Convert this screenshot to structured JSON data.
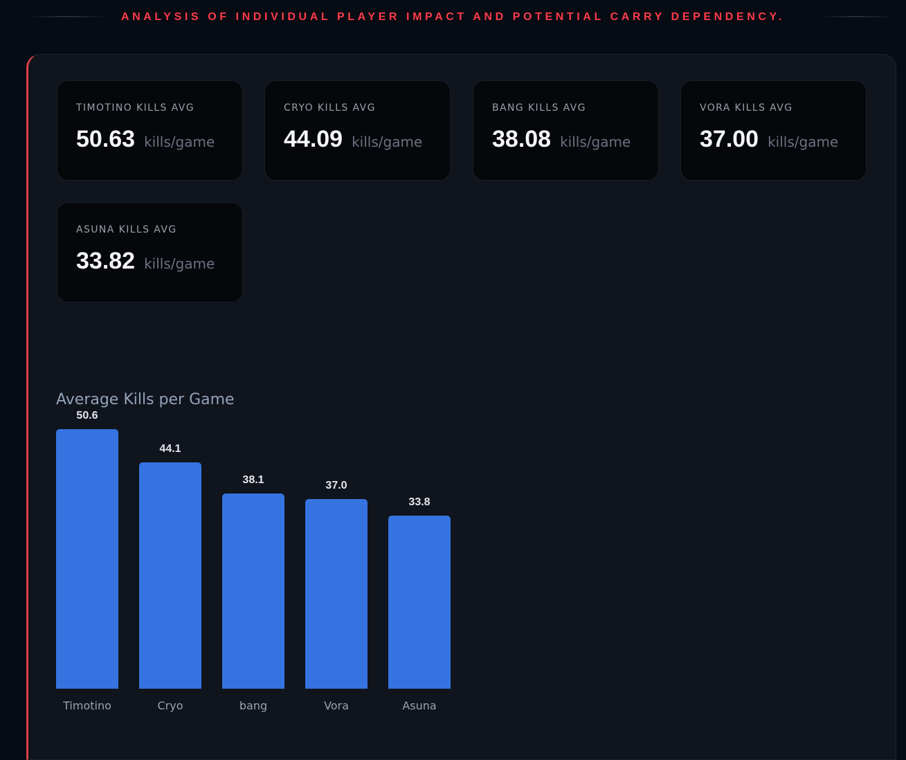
{
  "header": {
    "title": "ANALYSIS OF INDIVIDUAL PLAYER IMPACT AND POTENTIAL CARRY DEPENDENCY."
  },
  "cards": [
    {
      "label": "TIMOTINO KILLS AVG",
      "value": "50.63",
      "unit": "kills/game"
    },
    {
      "label": "CRYO KILLS AVG",
      "value": "44.09",
      "unit": "kills/game"
    },
    {
      "label": "BANG KILLS AVG",
      "value": "38.08",
      "unit": "kills/game"
    },
    {
      "label": "VORA KILLS AVG",
      "value": "37.00",
      "unit": "kills/game"
    },
    {
      "label": "ASUNA KILLS AVG",
      "value": "33.82",
      "unit": "kills/game"
    }
  ],
  "chart_data": {
    "type": "bar",
    "title": "Average Kills per Game",
    "categories": [
      "Timotino",
      "Cryo",
      "bang",
      "Vora",
      "Asuna"
    ],
    "values": [
      50.63,
      44.09,
      38.08,
      37.0,
      33.82
    ],
    "data_labels": [
      "50.6",
      "44.1",
      "38.1",
      "37.0",
      "33.8"
    ],
    "ylim": [
      0,
      50.63
    ],
    "grid": false,
    "colors": {
      "bar": "#3574e0"
    }
  }
}
